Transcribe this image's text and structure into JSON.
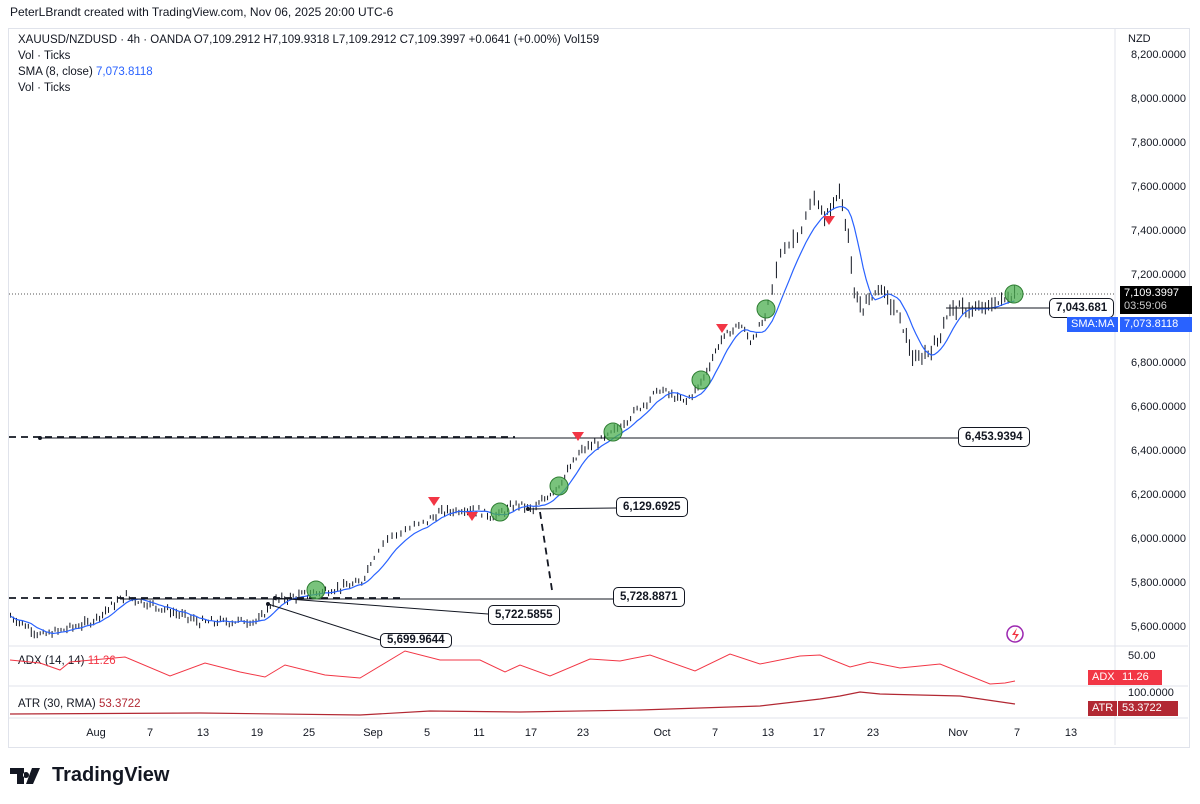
{
  "credit": "PeterLBrandt created with TradingView.com, Nov 06, 2025 20:00 UTC-6",
  "legend": {
    "symbol_line": "XAUUSD/NZDUSD · 4h · OANDA  O7,109.2912  H7,109.9318  L7,109.2912  C7,109.3997  +0.0641 (+0.00%)  Vol159",
    "vol1": "Vol · Ticks",
    "sma_label": "SMA (8, close)",
    "sma_value": "7,073.8118",
    "vol2": "Vol · Ticks",
    "adx_label": "ADX (14, 14)",
    "adx_value": "11.26",
    "atr_label": "ATR (30, RMA)",
    "atr_value": "53.3722"
  },
  "currency": "NZD",
  "price_axis": [
    "8,200.0000",
    "8,000.0000",
    "7,800.0000",
    "7,600.0000",
    "7,400.0000",
    "7,200.0000",
    "6,800.0000",
    "6,600.0000",
    "6,400.0000",
    "6,200.0000",
    "6,000.0000",
    "5,800.0000",
    "5,600.0000"
  ],
  "adx_axis": "50.00",
  "atr_axis": "100.0000",
  "current": {
    "price": "7,109.3997",
    "countdown": "03:59:06",
    "sma_tag": "SMA:MA",
    "sma": "7,073.8118",
    "adx_tag": "ADX",
    "adx": "11.26",
    "atr_tag": "ATR",
    "atr": "53.3722"
  },
  "annotations": [
    "6,453.9394",
    "6,129.6925",
    "5,728.8871",
    "5,722.5855",
    "5,699.9644",
    "7,043.681"
  ],
  "time_axis": [
    {
      "label": "Aug",
      "day": 0
    },
    {
      "label": "7",
      "day": 6
    },
    {
      "label": "13",
      "day": 12
    },
    {
      "label": "19",
      "day": 18
    },
    {
      "label": "25",
      "day": 24
    },
    {
      "label": "Sep",
      "day": 31
    },
    {
      "label": "5",
      "day": 35
    },
    {
      "label": "11",
      "day": 41
    },
    {
      "label": "17",
      "day": 47
    },
    {
      "label": "23",
      "day": 53
    },
    {
      "label": "Oct",
      "day": 61
    },
    {
      "label": "7",
      "day": 67
    },
    {
      "label": "13",
      "day": 73
    },
    {
      "label": "17",
      "day": 77
    },
    {
      "label": "23",
      "day": 83
    },
    {
      "label": "Nov",
      "day": 92
    },
    {
      "label": "7",
      "day": 98
    },
    {
      "label": "13",
      "day": 104
    }
  ],
  "chart_data": {
    "type": "ohlc",
    "symbol": "XAUUSD/NZDUSD",
    "interval": "4h",
    "x_unit": "days since Aug 1",
    "close_path": [
      [
        -9.5,
        5650
      ],
      [
        -6,
        5560
      ],
      [
        -0.7,
        5620
      ],
      [
        3.2,
        5740
      ],
      [
        7.8,
        5680
      ],
      [
        11.7,
        5620
      ],
      [
        18.3,
        5630
      ],
      [
        19.9,
        5720
      ],
      [
        24.1,
        5750
      ],
      [
        29.7,
        5800
      ],
      [
        31.9,
        6000
      ],
      [
        34.2,
        6060
      ],
      [
        36.5,
        6120
      ],
      [
        40.1,
        6140
      ],
      [
        42.8,
        6100
      ],
      [
        45.5,
        6160
      ],
      [
        47.3,
        6130
      ],
      [
        49,
        6200
      ],
      [
        50.3,
        6250
      ],
      [
        52.8,
        6400
      ],
      [
        55.4,
        6460
      ],
      [
        58.8,
        6600
      ],
      [
        60.8,
        6680
      ],
      [
        63.6,
        6620
      ],
      [
        65.3,
        6700
      ],
      [
        67.6,
        6900
      ],
      [
        69.8,
        6980
      ],
      [
        71,
        6900
      ],
      [
        72.7,
        7000
      ],
      [
        74,
        7300
      ],
      [
        75.5,
        7400
      ],
      [
        76.7,
        7550
      ],
      [
        77.7,
        7450
      ],
      [
        79.3,
        7580
      ],
      [
        80.2,
        7400
      ],
      [
        80.9,
        7100
      ],
      [
        81.8,
        7050
      ],
      [
        83.7,
        7150
      ],
      [
        85.9,
        7000
      ],
      [
        87.4,
        6800
      ],
      [
        89.6,
        6880
      ],
      [
        91.2,
        7050
      ],
      [
        94.2,
        7040
      ],
      [
        96.3,
        7080
      ],
      [
        97.8,
        7109
      ]
    ]
  },
  "brand": "TradingView"
}
